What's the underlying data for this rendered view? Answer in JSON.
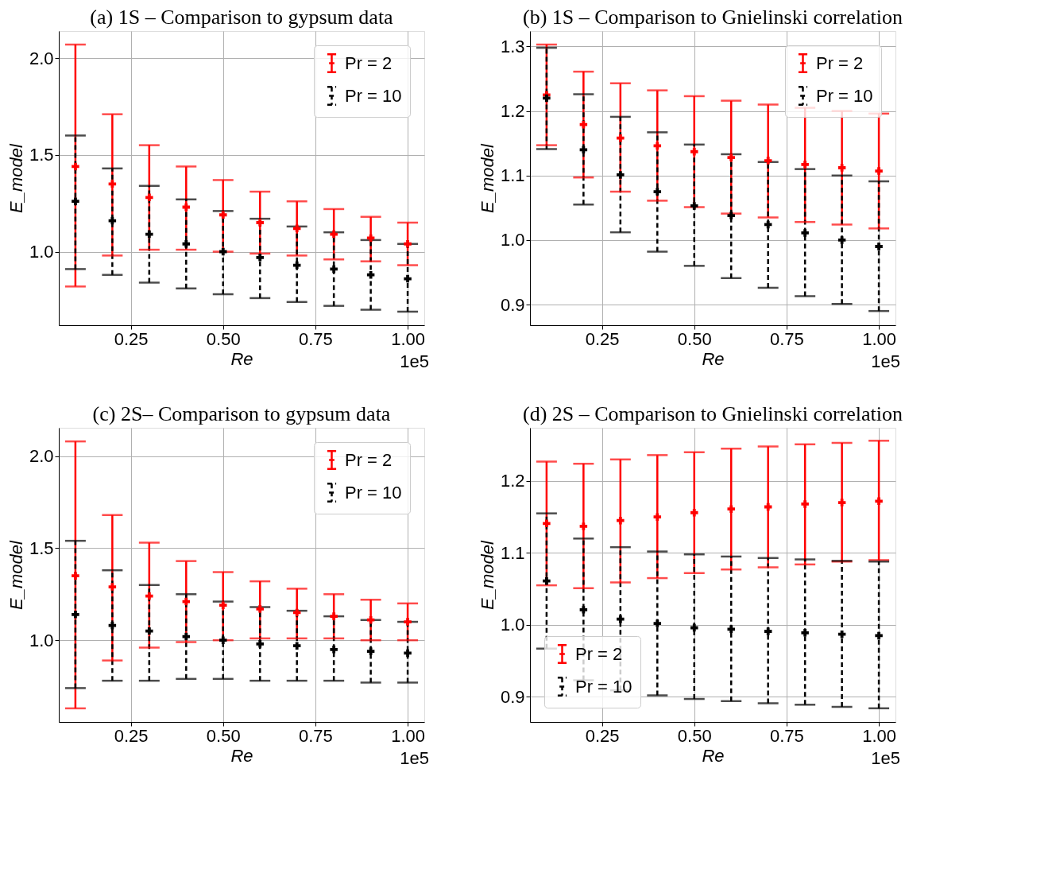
{
  "chart_data": [
    {
      "type": "scatter",
      "title": "(a)  1S – Comparison to gypsum data",
      "xlabel": "Re",
      "ylabel": "E_model",
      "annotations": [
        "1e5"
      ],
      "x": [
        0.1,
        0.2,
        0.3,
        0.4,
        0.5,
        0.6,
        0.7,
        0.8,
        0.9,
        1.0
      ],
      "xlim": [
        0.055,
        1.045
      ],
      "xticks": [
        {
          "value": 0.25,
          "label": "0.25"
        },
        {
          "value": 0.5,
          "label": "0.50"
        },
        {
          "value": 0.75,
          "label": "0.75"
        },
        {
          "value": 1.0,
          "label": "1.00"
        }
      ],
      "ylim": [
        0.62,
        2.14
      ],
      "yticks": [
        {
          "value": 1.0,
          "label": "1.0"
        },
        {
          "value": 1.5,
          "label": "1.5"
        },
        {
          "value": 2.0,
          "label": "2.0"
        }
      ],
      "grid": true,
      "legend": "top right",
      "marker": "cross",
      "series": [
        {
          "name": "Pr = 2",
          "color": "#ff0000",
          "line_style": "solid",
          "values": [
            1.44,
            1.35,
            1.28,
            1.23,
            1.19,
            1.15,
            1.12,
            1.09,
            1.07,
            1.04
          ],
          "errors": [
            [
              0.82,
              2.07
            ],
            [
              0.98,
              1.71
            ],
            [
              1.01,
              1.55
            ],
            [
              1.01,
              1.44
            ],
            [
              1.0,
              1.37
            ],
            [
              0.99,
              1.31
            ],
            [
              0.98,
              1.26
            ],
            [
              0.96,
              1.22
            ],
            [
              0.95,
              1.18
            ],
            [
              0.93,
              1.15
            ]
          ]
        },
        {
          "name": "Pr = 10",
          "color": "#000000",
          "line_style": "dashed",
          "values": [
            1.26,
            1.16,
            1.09,
            1.04,
            1.0,
            0.97,
            0.93,
            0.91,
            0.88,
            0.86
          ],
          "errors": [
            [
              0.91,
              1.6
            ],
            [
              0.88,
              1.43
            ],
            [
              0.84,
              1.34
            ],
            [
              0.81,
              1.27
            ],
            [
              0.78,
              1.21
            ],
            [
              0.76,
              1.17
            ],
            [
              0.74,
              1.13
            ],
            [
              0.72,
              1.1
            ],
            [
              0.7,
              1.06
            ],
            [
              0.69,
              1.04
            ]
          ]
        }
      ]
    },
    {
      "type": "scatter",
      "title": "(b) 1S – Comparison to Gnielinski correlation",
      "xlabel": "Re",
      "ylabel": "E_model",
      "annotations": [
        "1e5"
      ],
      "x": [
        0.1,
        0.2,
        0.3,
        0.4,
        0.5,
        0.6,
        0.7,
        0.8,
        0.9,
        1.0
      ],
      "xlim": [
        0.055,
        1.045
      ],
      "xticks": [
        {
          "value": 0.25,
          "label": "0.25"
        },
        {
          "value": 0.5,
          "label": "0.50"
        },
        {
          "value": 0.75,
          "label": "0.75"
        },
        {
          "value": 1.0,
          "label": "1.00"
        }
      ],
      "ylim": [
        0.868,
        1.324
      ],
      "yticks": [
        {
          "value": 0.9,
          "label": "0.9"
        },
        {
          "value": 1.0,
          "label": "1.0"
        },
        {
          "value": 1.1,
          "label": "1.1"
        },
        {
          "value": 1.2,
          "label": "1.2"
        },
        {
          "value": 1.3,
          "label": "1.3"
        }
      ],
      "grid": true,
      "legend": "top right",
      "marker": "cross",
      "series": [
        {
          "name": "Pr = 2",
          "color": "#ff0000",
          "line_style": "solid",
          "values": [
            1.225,
            1.179,
            1.158,
            1.146,
            1.137,
            1.128,
            1.123,
            1.117,
            1.112,
            1.107
          ],
          "errors": [
            [
              1.147,
              1.303
            ],
            [
              1.097,
              1.261
            ],
            [
              1.075,
              1.243
            ],
            [
              1.061,
              1.232
            ],
            [
              1.051,
              1.223
            ],
            [
              1.041,
              1.216
            ],
            [
              1.035,
              1.21
            ],
            [
              1.028,
              1.205
            ],
            [
              1.024,
              1.2
            ],
            [
              1.018,
              1.196
            ]
          ]
        },
        {
          "name": "Pr = 10",
          "color": "#000000",
          "line_style": "dashed",
          "values": [
            1.22,
            1.14,
            1.101,
            1.075,
            1.053,
            1.038,
            1.024,
            1.011,
            1.0,
            0.99
          ],
          "errors": [
            [
              1.141,
              1.298
            ],
            [
              1.055,
              1.226
            ],
            [
              1.012,
              1.191
            ],
            [
              0.982,
              1.167
            ],
            [
              0.96,
              1.148
            ],
            [
              0.941,
              1.133
            ],
            [
              0.926,
              1.121
            ],
            [
              0.913,
              1.11
            ],
            [
              0.901,
              1.1
            ],
            [
              0.89,
              1.091
            ]
          ]
        }
      ]
    },
    {
      "type": "scatter",
      "title": "(c) 2S– Comparison to gypsum data",
      "xlabel": "Re",
      "ylabel": "E_model",
      "annotations": [
        "1e5"
      ],
      "x": [
        0.1,
        0.2,
        0.3,
        0.4,
        0.5,
        0.6,
        0.7,
        0.8,
        0.9,
        1.0
      ],
      "xlim": [
        0.055,
        1.045
      ],
      "xticks": [
        {
          "value": 0.25,
          "label": "0.25"
        },
        {
          "value": 0.5,
          "label": "0.50"
        },
        {
          "value": 0.75,
          "label": "0.75"
        },
        {
          "value": 1.0,
          "label": "1.00"
        }
      ],
      "ylim": [
        0.556,
        2.154
      ],
      "yticks": [
        {
          "value": 1.0,
          "label": "1.0"
        },
        {
          "value": 1.5,
          "label": "1.5"
        },
        {
          "value": 2.0,
          "label": "2.0"
        }
      ],
      "grid": true,
      "legend": "top right",
      "marker": "cross",
      "series": [
        {
          "name": "Pr = 2",
          "color": "#ff0000",
          "line_style": "solid",
          "values": [
            1.35,
            1.29,
            1.24,
            1.21,
            1.19,
            1.17,
            1.15,
            1.13,
            1.11,
            1.1
          ],
          "errors": [
            [
              0.63,
              2.08
            ],
            [
              0.89,
              1.68
            ],
            [
              0.96,
              1.53
            ],
            [
              0.99,
              1.43
            ],
            [
              1.0,
              1.37
            ],
            [
              1.01,
              1.32
            ],
            [
              1.01,
              1.28
            ],
            [
              1.01,
              1.25
            ],
            [
              1.0,
              1.22
            ],
            [
              1.0,
              1.2
            ]
          ]
        },
        {
          "name": "Pr = 10",
          "color": "#000000",
          "line_style": "dashed",
          "values": [
            1.14,
            1.08,
            1.05,
            1.02,
            1.0,
            0.98,
            0.97,
            0.95,
            0.94,
            0.93
          ],
          "errors": [
            [
              0.74,
              1.54
            ],
            [
              0.78,
              1.38
            ],
            [
              0.78,
              1.3
            ],
            [
              0.79,
              1.25
            ],
            [
              0.79,
              1.21
            ],
            [
              0.78,
              1.18
            ],
            [
              0.78,
              1.16
            ],
            [
              0.78,
              1.13
            ],
            [
              0.77,
              1.11
            ],
            [
              0.77,
              1.1
            ]
          ]
        }
      ]
    },
    {
      "type": "scatter",
      "title": "(d) 2S – Comparison to Gnielinski correlation",
      "xlabel": "Re",
      "ylabel": "E_model",
      "annotations": [
        "1e5"
      ],
      "x": [
        0.1,
        0.2,
        0.3,
        0.4,
        0.5,
        0.6,
        0.7,
        0.8,
        0.9,
        1.0
      ],
      "xlim": [
        0.055,
        1.045
      ],
      "xticks": [
        {
          "value": 0.25,
          "label": "0.25"
        },
        {
          "value": 0.5,
          "label": "0.50"
        },
        {
          "value": 0.75,
          "label": "0.75"
        },
        {
          "value": 1.0,
          "label": "1.00"
        }
      ],
      "ylim": [
        0.865,
        1.274
      ],
      "yticks": [
        {
          "value": 0.9,
          "label": "0.9"
        },
        {
          "value": 1.0,
          "label": "1.0"
        },
        {
          "value": 1.1,
          "label": "1.1"
        },
        {
          "value": 1.2,
          "label": "1.2"
        }
      ],
      "grid": true,
      "legend": "bottom left",
      "marker": "cross",
      "series": [
        {
          "name": "Pr = 2",
          "color": "#ff0000",
          "line_style": "solid",
          "values": [
            1.141,
            1.137,
            1.145,
            1.15,
            1.156,
            1.161,
            1.164,
            1.168,
            1.17,
            1.172
          ],
          "errors": [
            [
              1.055,
              1.227
            ],
            [
              1.051,
              1.224
            ],
            [
              1.059,
              1.23
            ],
            [
              1.065,
              1.236
            ],
            [
              1.072,
              1.24
            ],
            [
              1.077,
              1.245
            ],
            [
              1.08,
              1.248
            ],
            [
              1.084,
              1.251
            ],
            [
              1.088,
              1.253
            ],
            [
              1.09,
              1.256
            ]
          ]
        },
        {
          "name": "Pr = 10",
          "color": "#000000",
          "line_style": "dashed",
          "values": [
            1.061,
            1.021,
            1.008,
            1.002,
            0.996,
            0.994,
            0.991,
            0.989,
            0.987,
            0.985
          ],
          "errors": [
            [
              0.967,
              1.155
            ],
            [
              0.923,
              1.12
            ],
            [
              0.909,
              1.108
            ],
            [
              0.902,
              1.102
            ],
            [
              0.897,
              1.098
            ],
            [
              0.894,
              1.095
            ],
            [
              0.891,
              1.093
            ],
            [
              0.889,
              1.091
            ],
            [
              0.886,
              1.089
            ],
            [
              0.884,
              1.088
            ]
          ]
        }
      ]
    }
  ]
}
